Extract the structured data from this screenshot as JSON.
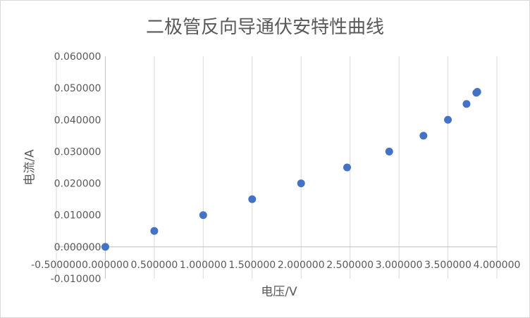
{
  "chart_data": {
    "type": "scatter",
    "title": "二极管反向导通伏安特性曲线",
    "xlabel": "电压/V",
    "ylabel": "电流/A",
    "xlim": [
      -0.5,
      4.0
    ],
    "ylim": [
      -0.01,
      0.06
    ],
    "x_ticks": [
      -0.5,
      0.0,
      0.5,
      1.0,
      1.5,
      2.0,
      2.5,
      3.0,
      3.5,
      4.0
    ],
    "x_tick_labels": [
      "-0.500000",
      "0.000000",
      "0.500000",
      "1.000000",
      "1.500000",
      "2.000000",
      "2.500000",
      "3.000000",
      "3.500000",
      "4.000000"
    ],
    "y_ticks": [
      0.06,
      0.05,
      0.04,
      0.03,
      0.02,
      0.01,
      0.0,
      -0.01
    ],
    "y_tick_labels": [
      "0.060000",
      "0.050000",
      "0.040000",
      "0.030000",
      "0.020000",
      "0.010000",
      "0.000000",
      "-0.010000"
    ],
    "grid": "vertical",
    "legend": "none",
    "marker_color": "#4472c4",
    "points": [
      {
        "x": 0.0,
        "y": 0.0
      },
      {
        "x": 0.5,
        "y": 0.005
      },
      {
        "x": 1.0,
        "y": 0.01
      },
      {
        "x": 1.5,
        "y": 0.015
      },
      {
        "x": 2.0,
        "y": 0.02
      },
      {
        "x": 2.47,
        "y": 0.025
      },
      {
        "x": 2.9,
        "y": 0.03
      },
      {
        "x": 3.25,
        "y": 0.035
      },
      {
        "x": 3.5,
        "y": 0.04
      },
      {
        "x": 3.69,
        "y": 0.045
      },
      {
        "x": 3.79,
        "y": 0.0485
      },
      {
        "x": 3.8,
        "y": 0.0488
      }
    ]
  }
}
